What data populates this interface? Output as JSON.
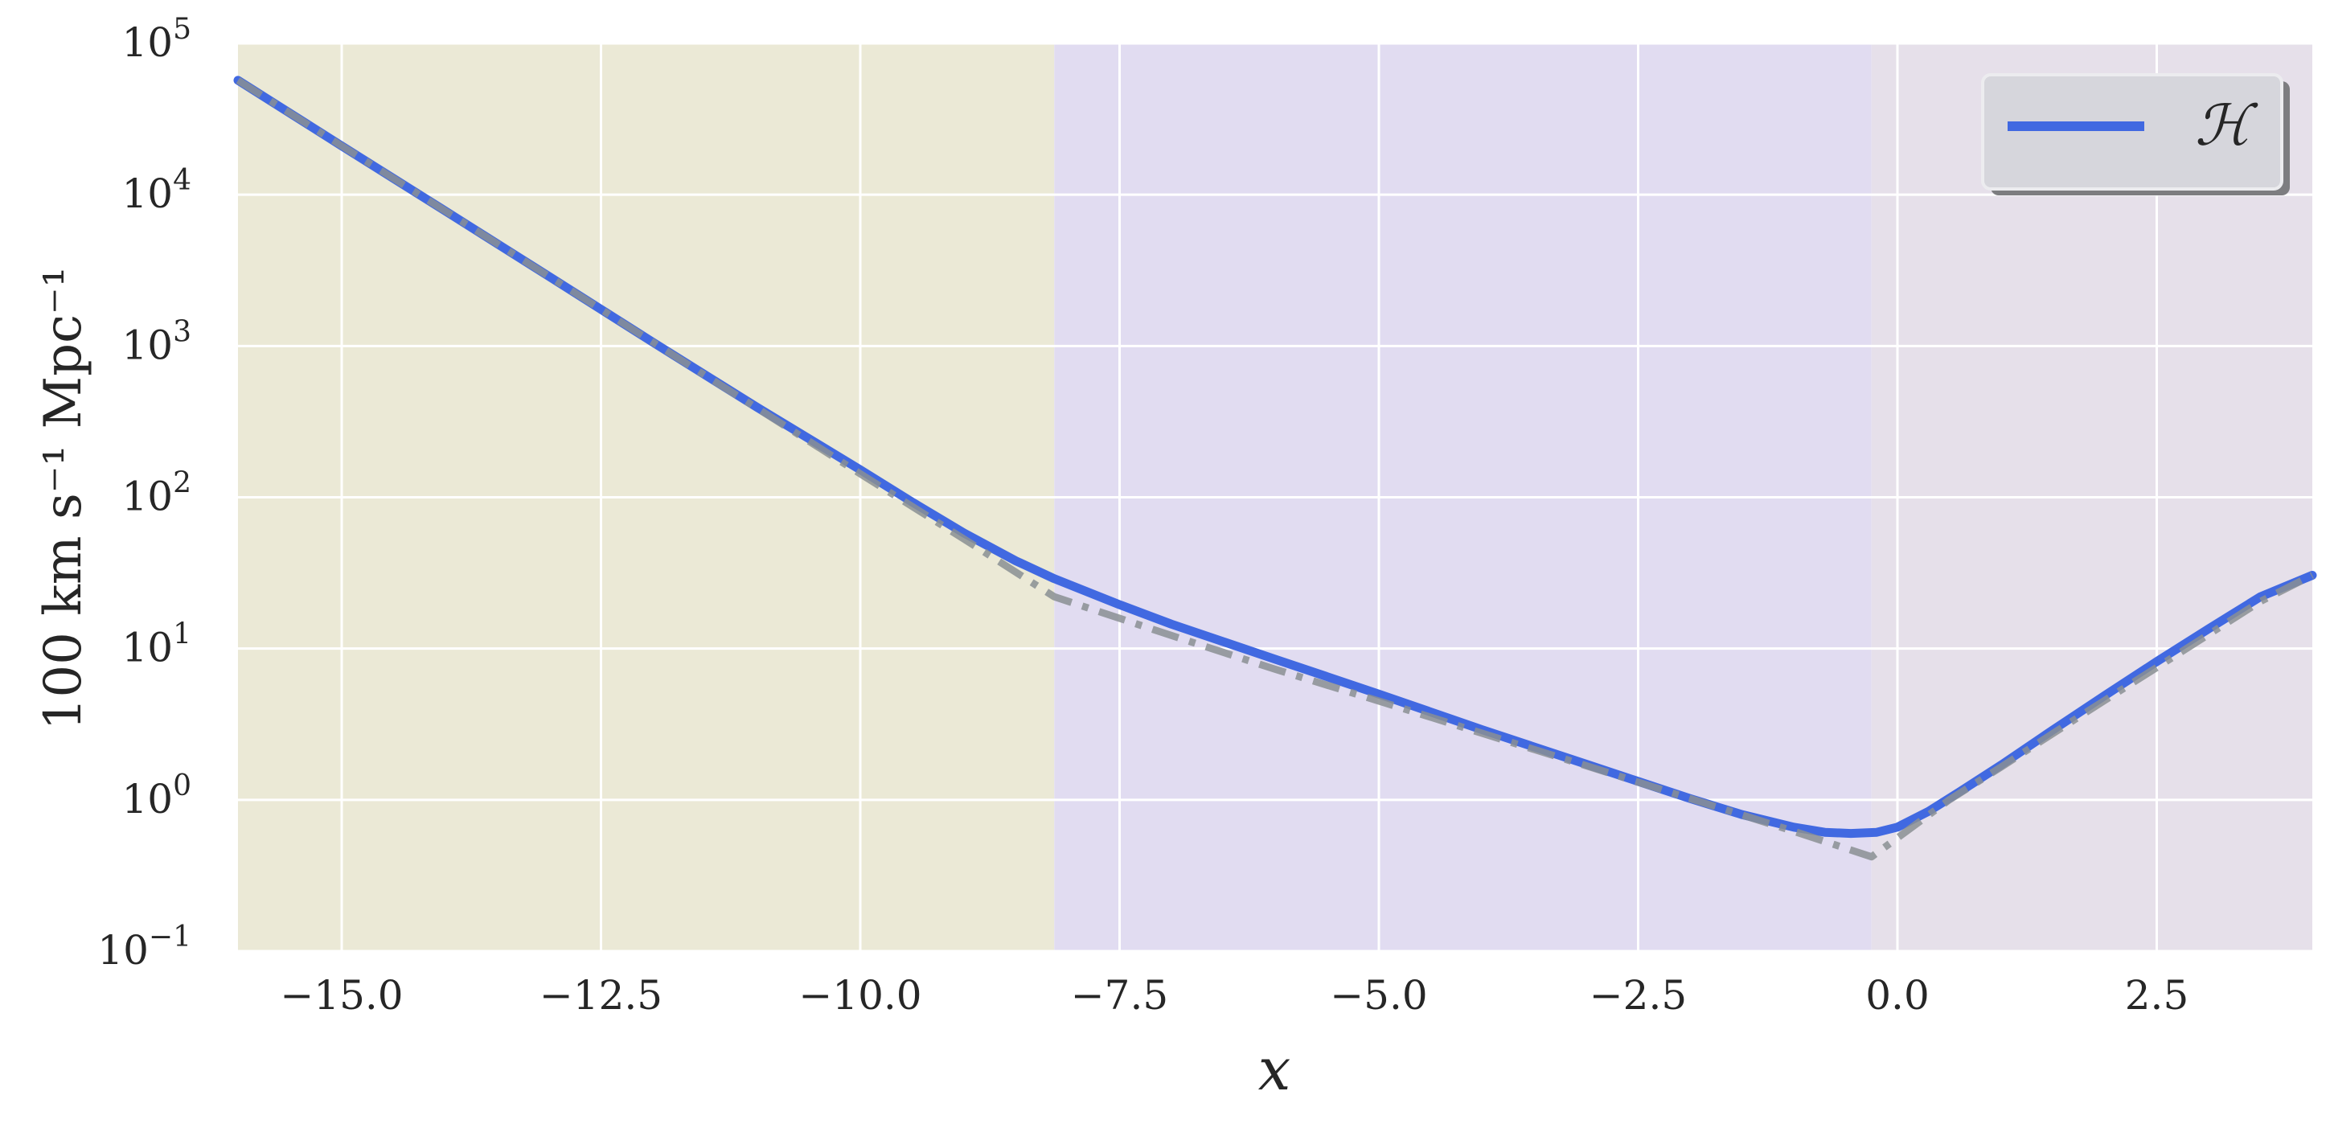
{
  "chart_data": {
    "type": "line",
    "xlabel": "x",
    "ylabel": "100 km s⁻¹ Mpc⁻¹",
    "xlim": [
      -16.0,
      4.0
    ],
    "ylim": [
      0.1,
      100000
    ],
    "yscale": "log",
    "grid": true,
    "legend_position": "top-right",
    "xticks": [
      -15.0,
      -12.5,
      -10.0,
      -7.5,
      -5.0,
      -2.5,
      0.0,
      2.5
    ],
    "xtick_labels": [
      "−15.0",
      "−12.5",
      "−10.0",
      "−7.5",
      "−5.0",
      "−2.5",
      "0.0",
      "2.5"
    ],
    "yticks": [
      0.1,
      1,
      10,
      100,
      1000,
      10000,
      100000
    ],
    "ytick_labels": [
      {
        "base": "10",
        "exp": "−1"
      },
      {
        "base": "10",
        "exp": "0"
      },
      {
        "base": "10",
        "exp": "1"
      },
      {
        "base": "10",
        "exp": "2"
      },
      {
        "base": "10",
        "exp": "3"
      },
      {
        "base": "10",
        "exp": "4"
      },
      {
        "base": "10",
        "exp": "5"
      }
    ],
    "regions": [
      {
        "x0": -16.0,
        "x1": -8.13,
        "color": "#ebe9d6"
      },
      {
        "x0": -8.13,
        "x1": -0.25,
        "color": "#e1dcf1"
      },
      {
        "x0": -0.25,
        "x1": 4.0,
        "color": "#e6e0ea"
      }
    ],
    "series": [
      {
        "name": "ℋ",
        "color": "#4169e1",
        "style": "solid",
        "x": [
          -16.0,
          -15.0,
          -14.0,
          -13.0,
          -12.0,
          -11.0,
          -10.0,
          -9.5,
          -9.0,
          -8.5,
          -8.13,
          -7.5,
          -7.0,
          -6.0,
          -5.0,
          -4.0,
          -3.0,
          -2.0,
          -1.5,
          -1.0,
          -0.7,
          -0.45,
          -0.2,
          0.0,
          0.3,
          0.6,
          1.0,
          1.5,
          2.0,
          2.5,
          3.0,
          3.5,
          4.0
        ],
        "y": [
          57000,
          21000,
          7800,
          2880,
          1060,
          395,
          152,
          93,
          58,
          38,
          29,
          19.5,
          14.5,
          8.5,
          5.0,
          2.9,
          1.72,
          1.02,
          0.8,
          0.66,
          0.61,
          0.6,
          0.61,
          0.66,
          0.84,
          1.13,
          1.7,
          2.9,
          4.9,
          8.2,
          13.5,
          22.0,
          30.5
        ]
      },
      {
        "name": "",
        "color": "#8a8f93",
        "style": "dashdot",
        "x": [
          -16.0,
          -15.0,
          -14.0,
          -13.0,
          -12.0,
          -11.0,
          -10.0,
          -9.0,
          -8.13,
          -7.0,
          -6.0,
          -5.0,
          -4.0,
          -3.0,
          -2.0,
          -1.0,
          -0.25,
          0.0,
          0.5,
          1.0,
          1.5,
          2.0,
          2.5,
          3.0,
          3.5,
          4.0
        ],
        "y": [
          57000,
          21000,
          7800,
          2880,
          1060,
          390,
          143,
          53,
          22,
          12.2,
          7.3,
          4.5,
          2.75,
          1.68,
          1.02,
          0.62,
          0.42,
          0.56,
          1.0,
          1.65,
          2.75,
          4.55,
          7.5,
          12.4,
          20.5,
          30.5
        ]
      }
    ]
  },
  "legend": {
    "items": [
      {
        "label": "ℋ",
        "color": "#4169e1"
      }
    ]
  }
}
